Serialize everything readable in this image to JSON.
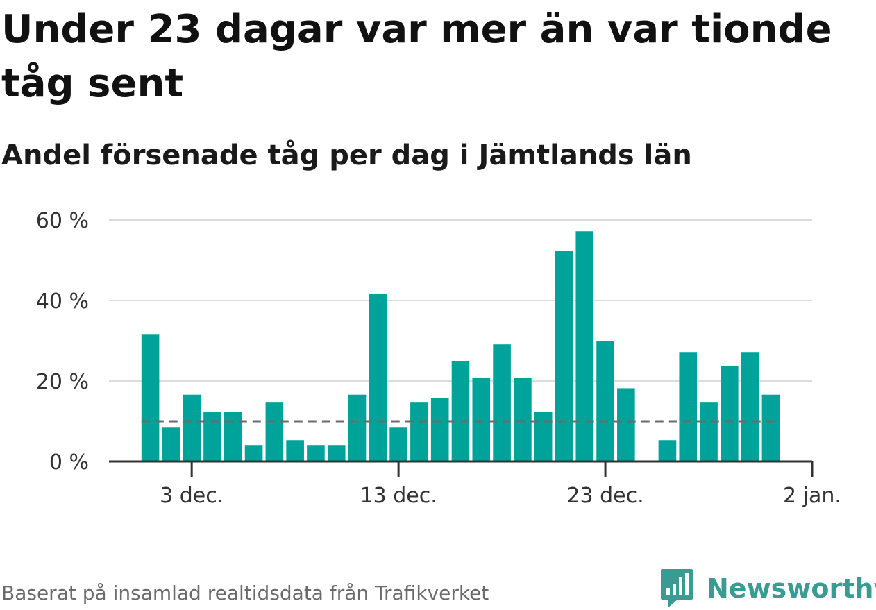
{
  "title": "Under 23 dagar var mer än var tionde tåg sent",
  "subtitle": "Andel försenade tåg per dag i Jämtlands län",
  "source": "Baserat på insamlad realtidsdata från Trafikverket",
  "brand": {
    "name": "Newsworthy",
    "icon": "newsworthy-logo-icon",
    "color": "#3a9b93"
  },
  "chart_data": {
    "type": "bar",
    "x": [
      "2021-12-01",
      "2021-12-02",
      "2021-12-03",
      "2021-12-04",
      "2021-12-05",
      "2021-12-06",
      "2021-12-07",
      "2021-12-08",
      "2021-12-09",
      "2021-12-10",
      "2021-12-11",
      "2021-12-12",
      "2021-12-13",
      "2021-12-14",
      "2021-12-15",
      "2021-12-16",
      "2021-12-17",
      "2021-12-18",
      "2021-12-19",
      "2021-12-20",
      "2021-12-21",
      "2021-12-22",
      "2021-12-23",
      "2021-12-24",
      "2021-12-25",
      "2021-12-26",
      "2021-12-27",
      "2021-12-28",
      "2021-12-29",
      "2021-12-30",
      "2021-12-31"
    ],
    "values": [
      31.5,
      8.4,
      16.6,
      12.4,
      12.4,
      4.1,
      14.8,
      5.3,
      4.1,
      4.1,
      16.6,
      41.7,
      8.4,
      14.8,
      15.8,
      25.0,
      20.7,
      29.1,
      20.7,
      12.4,
      52.3,
      57.2,
      30.0,
      18.2,
      null,
      5.3,
      27.2,
      14.8,
      23.8,
      27.2,
      16.6
    ],
    "reference_line": {
      "value": 10,
      "style": "dashed",
      "color": "#6b6b6b"
    },
    "bar_color": "#00a39a",
    "ylim": [
      0,
      60
    ],
    "y_ticks": [
      0,
      20,
      40,
      60
    ],
    "y_tick_labels": [
      "0 %",
      "20 %",
      "40 %",
      "60 %"
    ],
    "x_ticks": [
      "2021-12-03",
      "2021-12-13",
      "2021-12-23",
      "2022-01-02"
    ],
    "x_tick_labels": [
      "3 dec.",
      "13 dec.",
      "23 dec.",
      "2 jan."
    ],
    "xlim": [
      "2021-11-29",
      "2022-01-02"
    ],
    "grid": true,
    "legend": "none"
  }
}
